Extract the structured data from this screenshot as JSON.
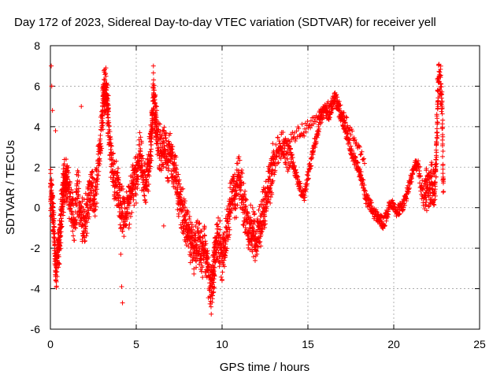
{
  "chart_data": {
    "type": "scatter",
    "title": "Day 172 of 2023, Sidereal Day-to-day VTEC variation (SDTVAR) for receiver yell",
    "xlabel": "GPS time / hours",
    "ylabel": "SDTVAR / TECUs",
    "xlim": [
      0,
      25
    ],
    "ylim": [
      -6,
      8
    ],
    "xticks": [
      0,
      5,
      10,
      15,
      20,
      25
    ],
    "yticks": [
      -6,
      -4,
      -2,
      0,
      2,
      4,
      6,
      8
    ],
    "grid": true,
    "marker": "+",
    "series_color": "#ff0000",
    "series": [
      {
        "name": "SDTVAR",
        "x": [
          0.0,
          0.1,
          0.2,
          0.3,
          0.4,
          0.5,
          0.6,
          0.7,
          0.8,
          0.9,
          1.0,
          1.2,
          1.4,
          1.6,
          1.8,
          2.0,
          2.2,
          2.4,
          2.6,
          2.8,
          3.0,
          3.1,
          3.2,
          3.3,
          3.4,
          3.6,
          3.8,
          4.0,
          4.2,
          4.4,
          4.6,
          4.8,
          5.0,
          5.2,
          5.4,
          5.6,
          5.8,
          5.9,
          6.0,
          6.1,
          6.2,
          6.4,
          6.6,
          6.8,
          7.0,
          7.2,
          7.4,
          7.6,
          7.8,
          8.0,
          8.2,
          8.4,
          8.6,
          8.8,
          9.0,
          9.2,
          9.4,
          9.5,
          9.6,
          9.8,
          10.0,
          10.2,
          10.4,
          10.6,
          10.8,
          11.0,
          11.2,
          11.4,
          11.6,
          11.8,
          12.0,
          12.2,
          12.4,
          12.6,
          12.8,
          13.0,
          13.2,
          13.4,
          13.6,
          13.8,
          14.0,
          14.2,
          14.4,
          14.6,
          14.8,
          15.0,
          15.2,
          15.4,
          15.6,
          15.8,
          16.0,
          16.2,
          16.4,
          16.6,
          16.8,
          17.0,
          17.2,
          17.4,
          17.6,
          17.8,
          18.0,
          18.2,
          18.4,
          18.6,
          18.8,
          19.0,
          19.2,
          19.4,
          19.6,
          19.8,
          20.0,
          20.2,
          20.4,
          20.6,
          20.8,
          21.0,
          21.2,
          21.4,
          21.6,
          21.8,
          22.0,
          22.2,
          22.4,
          22.5,
          22.6,
          22.8,
          22.9
        ],
        "y": [
          1.2,
          0.5,
          -0.8,
          -3.4,
          -2.6,
          -1.8,
          -0.8,
          0.4,
          1.2,
          1.6,
          1.0,
          0.2,
          -0.6,
          0.8,
          -0.6,
          -0.8,
          0.4,
          1.2,
          0.6,
          2.2,
          4.2,
          5.6,
          5.8,
          5.4,
          4.2,
          1.8,
          1.2,
          0.6,
          -0.2,
          -0.4,
          0.2,
          1.2,
          1.4,
          2.6,
          1.6,
          1.4,
          2.6,
          3.8,
          5.6,
          4.6,
          3.8,
          2.8,
          3.2,
          2.4,
          2.6,
          1.8,
          1.0,
          0.2,
          -0.6,
          -1.2,
          -1.8,
          -2.2,
          -1.6,
          -2.4,
          -2.0,
          -3.2,
          -4.2,
          -3.2,
          -2.2,
          -1.4,
          -2.6,
          -1.8,
          -0.4,
          0.8,
          0.6,
          1.6,
          0.4,
          -0.6,
          -1.0,
          -1.2,
          -1.6,
          -1.0,
          -0.2,
          0.6,
          1.4,
          2.2,
          2.8,
          3.0,
          3.2,
          2.4,
          2.6,
          2.0,
          1.4,
          0.8,
          0.6,
          1.6,
          2.4,
          3.2,
          3.8,
          4.6,
          4.8,
          4.4,
          5.0,
          5.4,
          4.8,
          4.4,
          3.8,
          3.2,
          2.6,
          2.2,
          1.8,
          1.2,
          0.4,
          0.2,
          -0.2,
          -0.4,
          -0.6,
          -0.8,
          -0.4,
          0.2,
          0.2,
          -0.2,
          0.0,
          0.2,
          0.8,
          1.4,
          2.0,
          2.2,
          1.0,
          0.6,
          1.0,
          1.2,
          0.4,
          3.2,
          6.4,
          5.6,
          0.8
        ]
      }
    ],
    "outliers": {
      "x": [
        0.05,
        0.08,
        0.12,
        0.3,
        4.1,
        4.15,
        4.2,
        1.8,
        6.0,
        6.6
      ],
      "y": [
        7.0,
        6.0,
        4.8,
        3.8,
        -2.3,
        -3.9,
        -4.7,
        5.0,
        7.0,
        -0.9
      ]
    }
  }
}
